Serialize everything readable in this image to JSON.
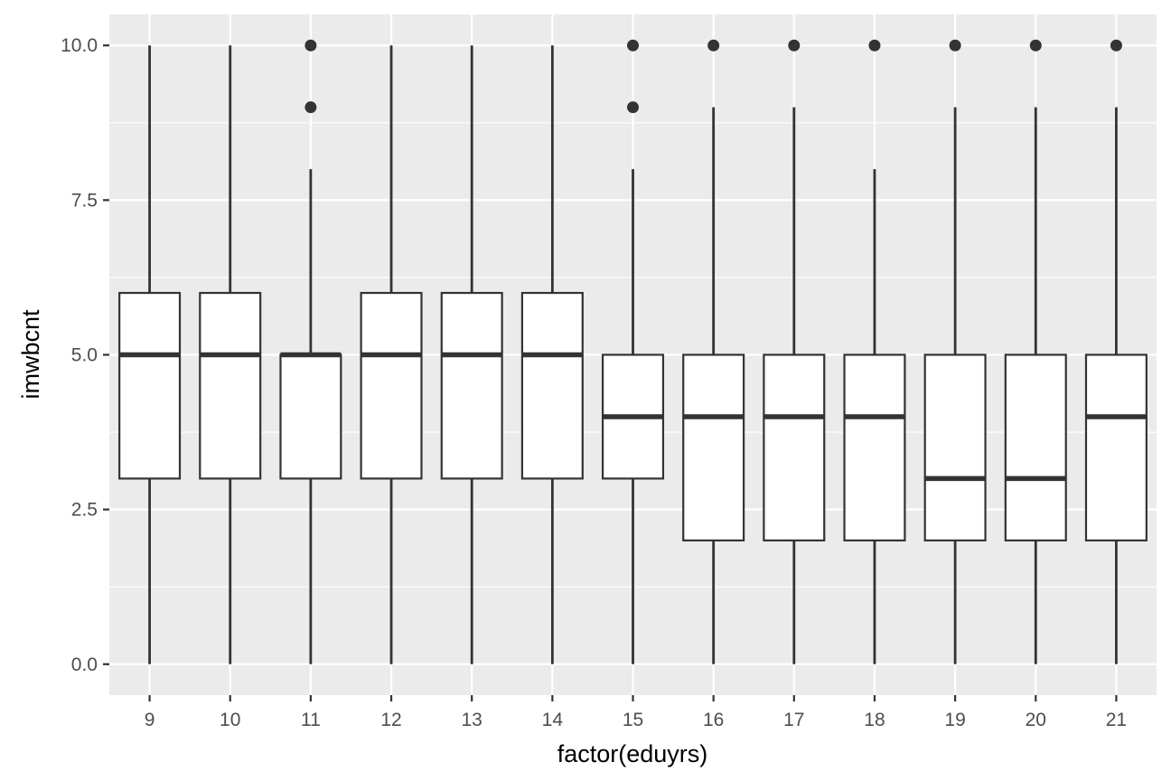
{
  "chart_data": {
    "type": "boxplot",
    "xlabel": "factor(eduyrs)",
    "ylabel": "imwbcnt",
    "ylim": [
      -0.5,
      10.5
    ],
    "yticks": [
      0.0,
      2.5,
      5.0,
      7.5,
      10.0
    ],
    "ytick_labels": [
      "0.0",
      "2.5",
      "5.0",
      "7.5",
      "10.0"
    ],
    "grid": true,
    "categories": [
      "9",
      "10",
      "11",
      "12",
      "13",
      "14",
      "15",
      "16",
      "17",
      "18",
      "19",
      "20",
      "21"
    ],
    "boxes": [
      {
        "category": "9",
        "low": 0,
        "q1": 3,
        "median": 5,
        "q3": 6,
        "high": 10,
        "outliers": []
      },
      {
        "category": "10",
        "low": 0,
        "q1": 3,
        "median": 5,
        "q3": 6,
        "high": 10,
        "outliers": []
      },
      {
        "category": "11",
        "low": 0,
        "q1": 3,
        "median": 5,
        "q3": 5,
        "high": 8,
        "outliers": [
          9,
          10
        ]
      },
      {
        "category": "12",
        "low": 0,
        "q1": 3,
        "median": 5,
        "q3": 6,
        "high": 10,
        "outliers": []
      },
      {
        "category": "13",
        "low": 0,
        "q1": 3,
        "median": 5,
        "q3": 6,
        "high": 10,
        "outliers": []
      },
      {
        "category": "14",
        "low": 0,
        "q1": 3,
        "median": 5,
        "q3": 6,
        "high": 10,
        "outliers": []
      },
      {
        "category": "15",
        "low": 0,
        "q1": 3,
        "median": 4,
        "q3": 5,
        "high": 8,
        "outliers": [
          9,
          10
        ]
      },
      {
        "category": "16",
        "low": 0,
        "q1": 2,
        "median": 4,
        "q3": 5,
        "high": 9,
        "outliers": [
          10
        ]
      },
      {
        "category": "17",
        "low": 0,
        "q1": 2,
        "median": 4,
        "q3": 5,
        "high": 9,
        "outliers": [
          10
        ]
      },
      {
        "category": "18",
        "low": 0,
        "q1": 2,
        "median": 4,
        "q3": 5,
        "high": 8,
        "outliers": [
          10
        ]
      },
      {
        "category": "19",
        "low": 0,
        "q1": 2,
        "median": 3,
        "q3": 5,
        "high": 9,
        "outliers": [
          10
        ]
      },
      {
        "category": "20",
        "low": 0,
        "q1": 2,
        "median": 3,
        "q3": 5,
        "high": 9,
        "outliers": [
          10
        ]
      },
      {
        "category": "21",
        "low": 0,
        "q1": 2,
        "median": 4,
        "q3": 5,
        "high": 9,
        "outliers": [
          10
        ]
      }
    ],
    "colors": {
      "panel": "#ebebeb",
      "grid": "#ffffff",
      "box_fill": "#ffffff",
      "box_line": "#333333",
      "tick_text": "#4d4d4d",
      "axis_text": "#000000"
    }
  }
}
